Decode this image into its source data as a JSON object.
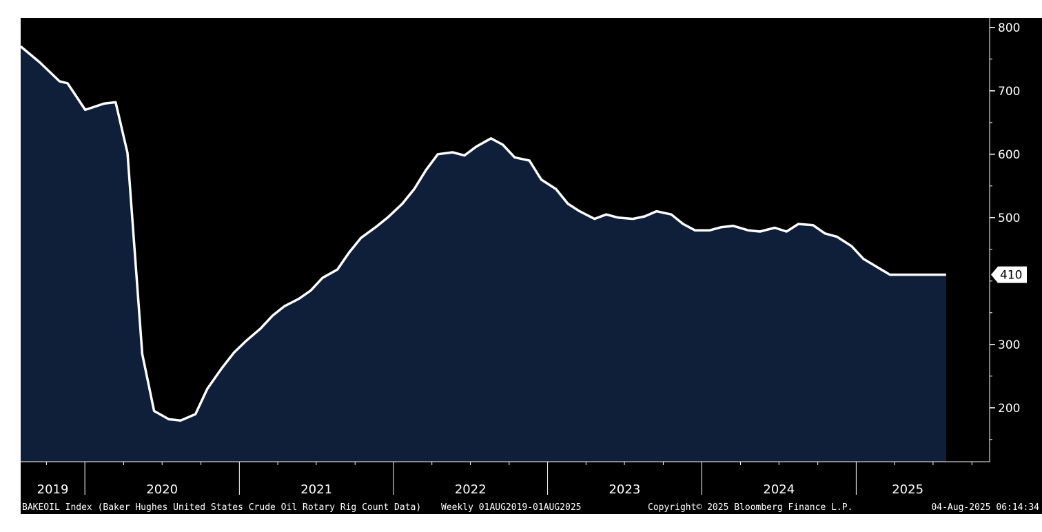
{
  "colors": {
    "background": "#000000",
    "area_fill": "#0f1f3a",
    "line": "#ffffff",
    "axis": "#ffffff",
    "page": "#ffffff"
  },
  "footer": {
    "description": "BAKEOIL Index (Baker Hughes United States Crude Oil Rotary Rig Count Data)",
    "range": "Weekly 01AUG2019-01AUG2025",
    "copyright": "Copyright© 2025 Bloomberg Finance L.P.",
    "timestamp": "04-Aug-2025 06:14:34"
  },
  "chart_data": {
    "type": "area",
    "title": "",
    "xlabel": "",
    "ylabel": "",
    "series": [
      {
        "name": "BAKEOIL Index",
        "x": [
          "2019-08-01",
          "2019-09-15",
          "2019-11-01",
          "2019-11-20",
          "2020-01-01",
          "2020-02-15",
          "2020-03-13",
          "2020-04-10",
          "2020-05-15",
          "2020-06-12",
          "2020-07-17",
          "2020-08-14",
          "2020-09-18",
          "2020-10-16",
          "2020-11-20",
          "2020-12-18",
          "2021-01-15",
          "2021-02-19",
          "2021-03-19",
          "2021-04-16",
          "2021-05-21",
          "2021-06-18",
          "2021-07-16",
          "2021-08-20",
          "2021-09-17",
          "2021-10-15",
          "2021-11-19",
          "2021-12-17",
          "2022-01-21",
          "2022-02-18",
          "2022-03-18",
          "2022-04-15",
          "2022-05-20",
          "2022-06-17",
          "2022-07-15",
          "2022-08-19",
          "2022-09-16",
          "2022-10-14",
          "2022-11-18",
          "2022-12-16",
          "2023-01-20",
          "2023-02-17",
          "2023-03-17",
          "2023-04-21",
          "2023-05-19",
          "2023-06-16",
          "2023-07-21",
          "2023-08-18",
          "2023-09-15",
          "2023-10-20",
          "2023-11-17",
          "2023-12-15",
          "2024-01-19",
          "2024-02-16",
          "2024-03-15",
          "2024-04-19",
          "2024-05-17",
          "2024-06-21",
          "2024-07-19",
          "2024-08-16",
          "2024-09-20",
          "2024-10-18",
          "2024-11-15",
          "2024-12-20",
          "2025-01-17",
          "2025-02-21",
          "2025-03-21",
          "2025-04-18",
          "2025-05-16",
          "2025-06-20",
          "2025-07-18",
          "2025-08-01"
        ],
        "values": [
          770,
          745,
          715,
          712,
          670,
          680,
          682,
          602,
          285,
          195,
          182,
          180,
          190,
          230,
          263,
          287,
          305,
          325,
          345,
          360,
          372,
          385,
          405,
          418,
          445,
          468,
          485,
          500,
          522,
          545,
          575,
          600,
          603,
          598,
          612,
          625,
          615,
          595,
          590,
          560,
          545,
          522,
          510,
          498,
          505,
          500,
          498,
          502,
          510,
          505,
          490,
          480,
          480,
          485,
          487,
          480,
          478,
          484,
          478,
          490,
          488,
          475,
          470,
          455,
          435,
          421,
          410,
          410,
          410,
          410,
          410,
          410
        ]
      }
    ],
    "last_value_label": "410",
    "xlim": [
      "2019-08-01",
      "2025-11-12"
    ],
    "ylim": [
      115,
      815
    ],
    "ytick_values": [
      200,
      300,
      500,
      600,
      700,
      800
    ],
    "ytick_labels": [
      "200",
      "300",
      "500",
      "600",
      "700",
      "800"
    ],
    "xtick_labels": [
      "2019",
      "2020",
      "2021",
      "2022",
      "2023",
      "2024",
      "2025"
    ],
    "year_dividers": [
      "2019-12-31",
      "2020-12-31",
      "2021-12-31",
      "2022-12-31",
      "2023-12-31",
      "2024-12-31"
    ],
    "grid": false,
    "legend": "none",
    "y_axis_side": "right"
  }
}
